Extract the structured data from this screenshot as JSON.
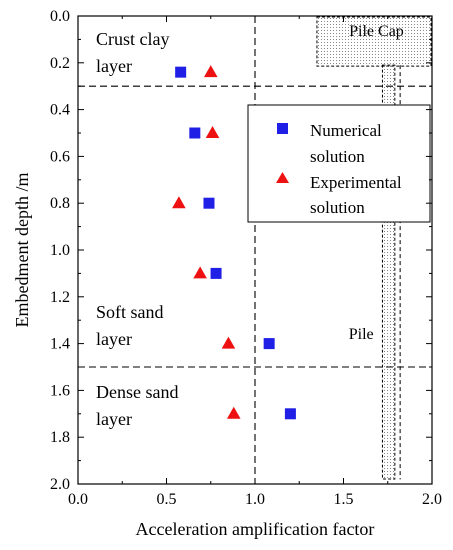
{
  "chart_data": {
    "type": "scatter",
    "xlabel": "Acceleration amplification factor",
    "ylabel": "Embedment depth /m",
    "xlim": [
      0.0,
      2.0
    ],
    "ylim": [
      0.0,
      2.0
    ],
    "y_inverted": true,
    "x_axis_position": "top and bottom",
    "x_ticks": [
      "0.0",
      "0.5",
      "1.0",
      "1.5",
      "2.0"
    ],
    "y_ticks": [
      "0.0",
      "0.2",
      "0.4",
      "0.6",
      "0.8",
      "1.0",
      "1.2",
      "1.4",
      "1.6",
      "1.8",
      "2.0"
    ],
    "grid": false,
    "legend_position": "right",
    "series": [
      {
        "name_lines": [
          "Numerical",
          "solution"
        ],
        "marker": "square",
        "color": "#1f1fe6",
        "points": [
          {
            "x": 0.58,
            "y": 0.24
          },
          {
            "x": 0.66,
            "y": 0.5
          },
          {
            "x": 0.74,
            "y": 0.8
          },
          {
            "x": 0.78,
            "y": 1.1
          },
          {
            "x": 1.08,
            "y": 1.4
          },
          {
            "x": 1.2,
            "y": 1.7
          }
        ]
      },
      {
        "name_lines": [
          "Experimental",
          "solution"
        ],
        "marker": "triangle",
        "color": "#ee1111",
        "points": [
          {
            "x": 0.75,
            "y": 0.24
          },
          {
            "x": 0.76,
            "y": 0.5
          },
          {
            "x": 0.57,
            "y": 0.8
          },
          {
            "x": 0.69,
            "y": 1.1
          },
          {
            "x": 0.85,
            "y": 1.4
          },
          {
            "x": 0.88,
            "y": 1.7
          }
        ]
      }
    ],
    "reference_lines": {
      "horizontal_depths": [
        0.3,
        1.5
      ],
      "vertical_x": [
        1.0
      ]
    },
    "layers": [
      {
        "label_lines": [
          "Crust clay",
          "layer"
        ]
      },
      {
        "label_lines": [
          "Soft sand",
          "layer"
        ]
      },
      {
        "label_lines": [
          "Dense sand",
          "layer"
        ]
      }
    ],
    "pile_cap": {
      "label": "Pile Cap",
      "x_range": [
        1.35,
        2.0
      ],
      "depth_range": [
        0.0,
        0.21
      ]
    },
    "pile": {
      "label": "Pile",
      "x_range": [
        1.72,
        1.79
      ],
      "depth_range": [
        0.0,
        2.0
      ],
      "dash_x": 1.82,
      "dash_depth_end": 1.98
    }
  }
}
